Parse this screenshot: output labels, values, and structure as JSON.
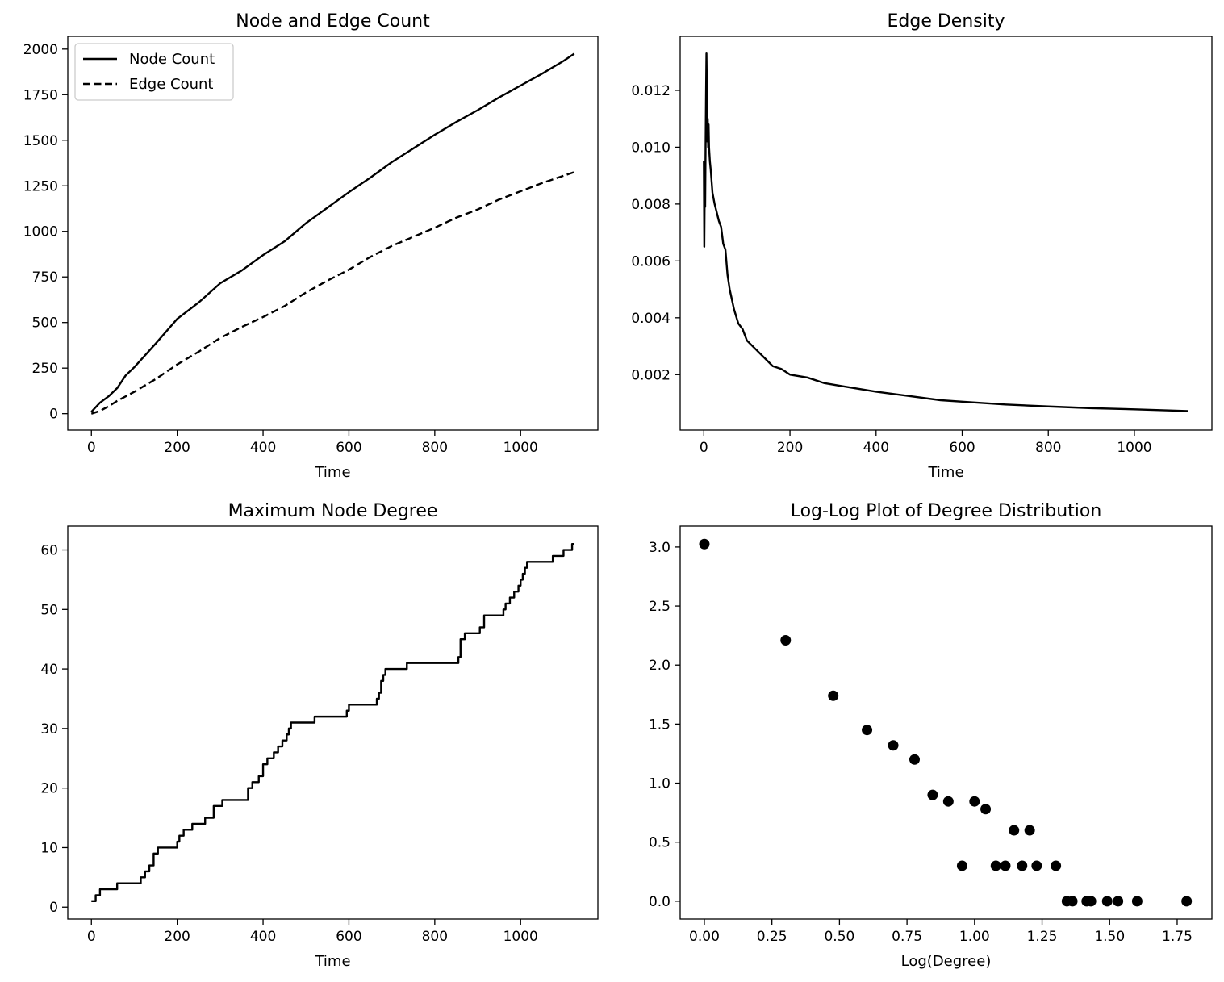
{
  "chart_data": [
    {
      "id": "node-edge-count",
      "type": "line",
      "title": "Node and Edge Count",
      "xlabel": "Time",
      "ylabel": "",
      "xlim": [
        -55,
        1180
      ],
      "ylim": [
        -90,
        2070
      ],
      "xticks": [
        0,
        200,
        400,
        600,
        800,
        1000
      ],
      "yticks": [
        0,
        250,
        500,
        750,
        1000,
        1250,
        1500,
        1750,
        2000
      ],
      "grid": false,
      "legend": "top-left",
      "series": [
        {
          "name": "Node Count",
          "style": "solid",
          "x": [
            0,
            20,
            40,
            60,
            80,
            100,
            150,
            200,
            250,
            300,
            350,
            400,
            450,
            500,
            550,
            600,
            650,
            700,
            750,
            800,
            850,
            900,
            950,
            1000,
            1050,
            1100,
            1125
          ],
          "y": [
            10,
            60,
            95,
            140,
            210,
            255,
            385,
            520,
            610,
            715,
            785,
            870,
            945,
            1045,
            1130,
            1215,
            1295,
            1380,
            1455,
            1530,
            1600,
            1665,
            1735,
            1800,
            1865,
            1935,
            1975
          ]
        },
        {
          "name": "Edge Count",
          "style": "dashed",
          "x": [
            0,
            20,
            40,
            60,
            80,
            100,
            150,
            200,
            250,
            300,
            350,
            400,
            450,
            500,
            550,
            600,
            650,
            700,
            750,
            800,
            850,
            900,
            950,
            1000,
            1050,
            1100,
            1125
          ],
          "y": [
            0,
            15,
            40,
            70,
            95,
            120,
            190,
            270,
            340,
            415,
            475,
            530,
            590,
            665,
            730,
            790,
            860,
            920,
            970,
            1020,
            1075,
            1120,
            1175,
            1220,
            1265,
            1305,
            1325
          ]
        }
      ]
    },
    {
      "id": "edge-density",
      "type": "line",
      "title": "Edge Density",
      "xlabel": "Time",
      "ylabel": "",
      "xlim": [
        -55,
        1180
      ],
      "ylim": [
        5e-05,
        0.0139
      ],
      "xticks": [
        0,
        200,
        400,
        600,
        800,
        1000
      ],
      "ytick_labels": [
        "0.002",
        "0.004",
        "0.006",
        "0.008",
        "0.010",
        "0.012"
      ],
      "yticks": [
        0.002,
        0.004,
        0.006,
        0.008,
        0.01,
        0.012
      ],
      "grid": false,
      "series": [
        {
          "name": "",
          "style": "solid",
          "x": [
            0,
            1,
            2,
            3,
            4,
            5,
            6,
            7,
            8,
            9,
            10,
            11,
            12,
            14,
            16,
            18,
            20,
            25,
            30,
            35,
            40,
            45,
            50,
            55,
            60,
            70,
            80,
            90,
            100,
            120,
            140,
            160,
            180,
            200,
            240,
            280,
            320,
            360,
            400,
            450,
            500,
            550,
            600,
            700,
            800,
            900,
            1000,
            1125
          ],
          "y": [
            0.0095,
            0.0065,
            0.0085,
            0.0079,
            0.01,
            0.0118,
            0.0133,
            0.012,
            0.0102,
            0.011,
            0.01,
            0.0108,
            0.01,
            0.0095,
            0.0092,
            0.0088,
            0.0084,
            0.008,
            0.0077,
            0.0074,
            0.0072,
            0.0066,
            0.0064,
            0.0055,
            0.005,
            0.0043,
            0.0038,
            0.0036,
            0.0032,
            0.0029,
            0.0026,
            0.0023,
            0.0022,
            0.002,
            0.0019,
            0.0017,
            0.0016,
            0.0015,
            0.0014,
            0.0013,
            0.0012,
            0.0011,
            0.00105,
            0.00095,
            0.00088,
            0.00082,
            0.00078,
            0.00072
          ]
        }
      ]
    },
    {
      "id": "max-node-degree",
      "type": "line",
      "title": "Maximum Node Degree",
      "xlabel": "Time",
      "ylabel": "",
      "xlim": [
        -55,
        1180
      ],
      "ylim": [
        -2,
        64
      ],
      "xticks": [
        0,
        200,
        400,
        600,
        800,
        1000
      ],
      "yticks": [
        0,
        10,
        20,
        30,
        40,
        50,
        60
      ],
      "grid": false,
      "series": [
        {
          "name": "",
          "style": "step",
          "x": [
            0,
            10,
            20,
            60,
            115,
            125,
            135,
            145,
            155,
            200,
            205,
            215,
            235,
            265,
            285,
            305,
            365,
            375,
            390,
            400,
            410,
            425,
            435,
            445,
            455,
            460,
            465,
            475,
            520,
            595,
            600,
            665,
            670,
            675,
            680,
            685,
            735,
            855,
            860,
            870,
            905,
            915,
            960,
            965,
            970,
            975,
            985,
            995,
            1000,
            1005,
            1010,
            1015,
            1020,
            1025,
            1075,
            1100,
            1120,
            1125
          ],
          "y": [
            1,
            2,
            3,
            4,
            5,
            6,
            7,
            9,
            10,
            11,
            12,
            13,
            14,
            15,
            17,
            18,
            20,
            21,
            22,
            24,
            25,
            26,
            27,
            28,
            29,
            30,
            31,
            31,
            32,
            33,
            34,
            35,
            36,
            38,
            39,
            40,
            41,
            42,
            45,
            46,
            47,
            49,
            50,
            51,
            51,
            52,
            53,
            54,
            55,
            56,
            57,
            58,
            58,
            58,
            59,
            60,
            61,
            61
          ]
        }
      ]
    },
    {
      "id": "log-log-degree",
      "type": "scatter",
      "title": "Log-Log Plot of Degree Distribution",
      "xlabel": "Log(Degree)",
      "ylabel": "",
      "xlim": [
        -0.0895,
        1.8785
      ],
      "ylim": [
        -0.1514,
        3.1771
      ],
      "xticks": [
        0,
        0.25,
        0.5,
        0.75,
        1.0,
        1.25,
        1.5,
        1.75
      ],
      "xtick_labels": [
        "0.00",
        "0.25",
        "0.50",
        "0.75",
        "1.00",
        "1.25",
        "1.50",
        "1.75"
      ],
      "yticks": [
        0,
        0.5,
        1.0,
        1.5,
        2.0,
        2.5,
        3.0
      ],
      "ytick_labels": [
        "0.0",
        "0.5",
        "1.0",
        "1.5",
        "2.0",
        "2.5",
        "3.0"
      ],
      "grid": false,
      "series": [
        {
          "name": "",
          "x": [
            0.0,
            0.301,
            0.477,
            0.602,
            0.699,
            0.778,
            0.845,
            0.903,
            0.954,
            1.0,
            1.041,
            1.079,
            1.114,
            1.146,
            1.176,
            1.204,
            1.23,
            1.301,
            1.342,
            1.362,
            1.415,
            1.431,
            1.491,
            1.531,
            1.602,
            1.785
          ],
          "y": [
            3.025,
            2.21,
            1.74,
            1.45,
            1.32,
            1.2,
            0.9,
            0.845,
            0.3,
            0.845,
            0.78,
            0.3,
            0.3,
            0.6,
            0.3,
            0.6,
            0.3,
            0.3,
            0.0,
            0.0,
            0.0,
            0.0,
            0.0,
            0.0,
            0.0,
            0.0
          ]
        }
      ]
    }
  ]
}
